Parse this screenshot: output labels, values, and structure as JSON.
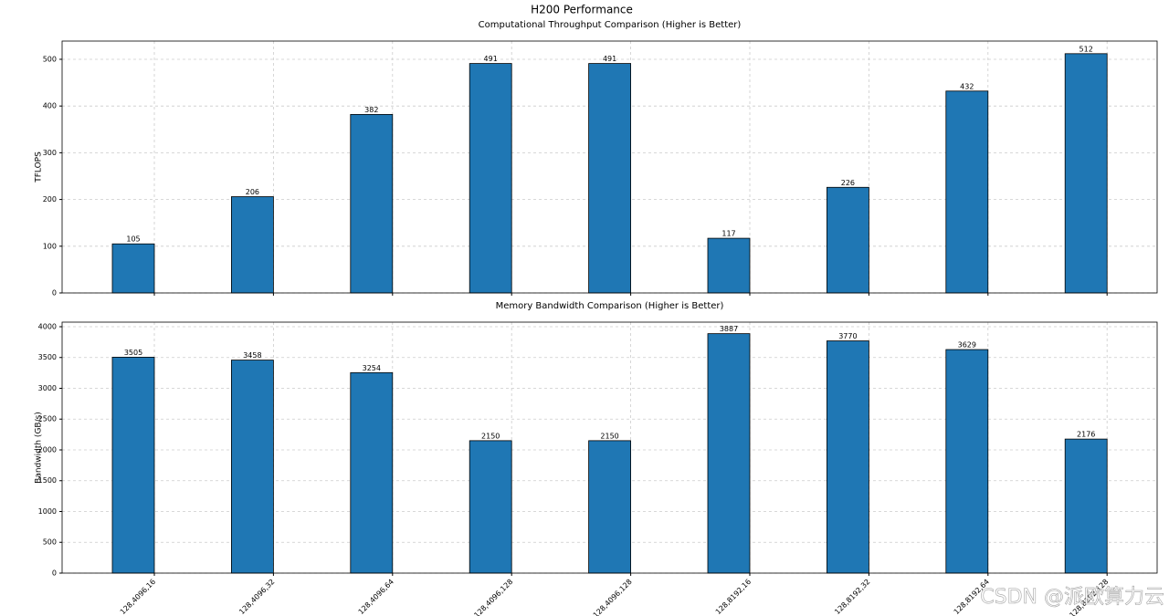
{
  "title": "H200 Performance",
  "watermark": "CSDN @派欧算力云",
  "chart_data": [
    {
      "type": "bar",
      "title": "Computational Throughput Comparison (Higher is Better)",
      "ylabel": "TFLOPS",
      "values": [
        105,
        206,
        382,
        491,
        491,
        117,
        226,
        432,
        512
      ],
      "color": "#1f77b4",
      "ylim": [
        0,
        539
      ],
      "yticks": [
        0,
        100,
        200,
        300,
        400,
        500
      ],
      "grid": true
    },
    {
      "type": "bar",
      "title": "Memory Bandwidth Comparison (Higher is Better)",
      "ylabel": "Bandwidth (GB/s)",
      "categories": [
        "128,4096,16",
        "128,4096,32",
        "128,4096,64",
        "128,4096,128",
        "128,4096,128",
        "128,8192,16",
        "128,8192,32",
        "128,8192,64",
        "128,8192,128"
      ],
      "values": [
        3505,
        3458,
        3254,
        2150,
        2150,
        3887,
        3770,
        3629,
        2176
      ],
      "color": "#1f77b4",
      "ylim": [
        0,
        4074
      ],
      "yticks": [
        0,
        500,
        1000,
        1500,
        2000,
        2500,
        3000,
        3500,
        4000
      ],
      "grid": true
    }
  ]
}
